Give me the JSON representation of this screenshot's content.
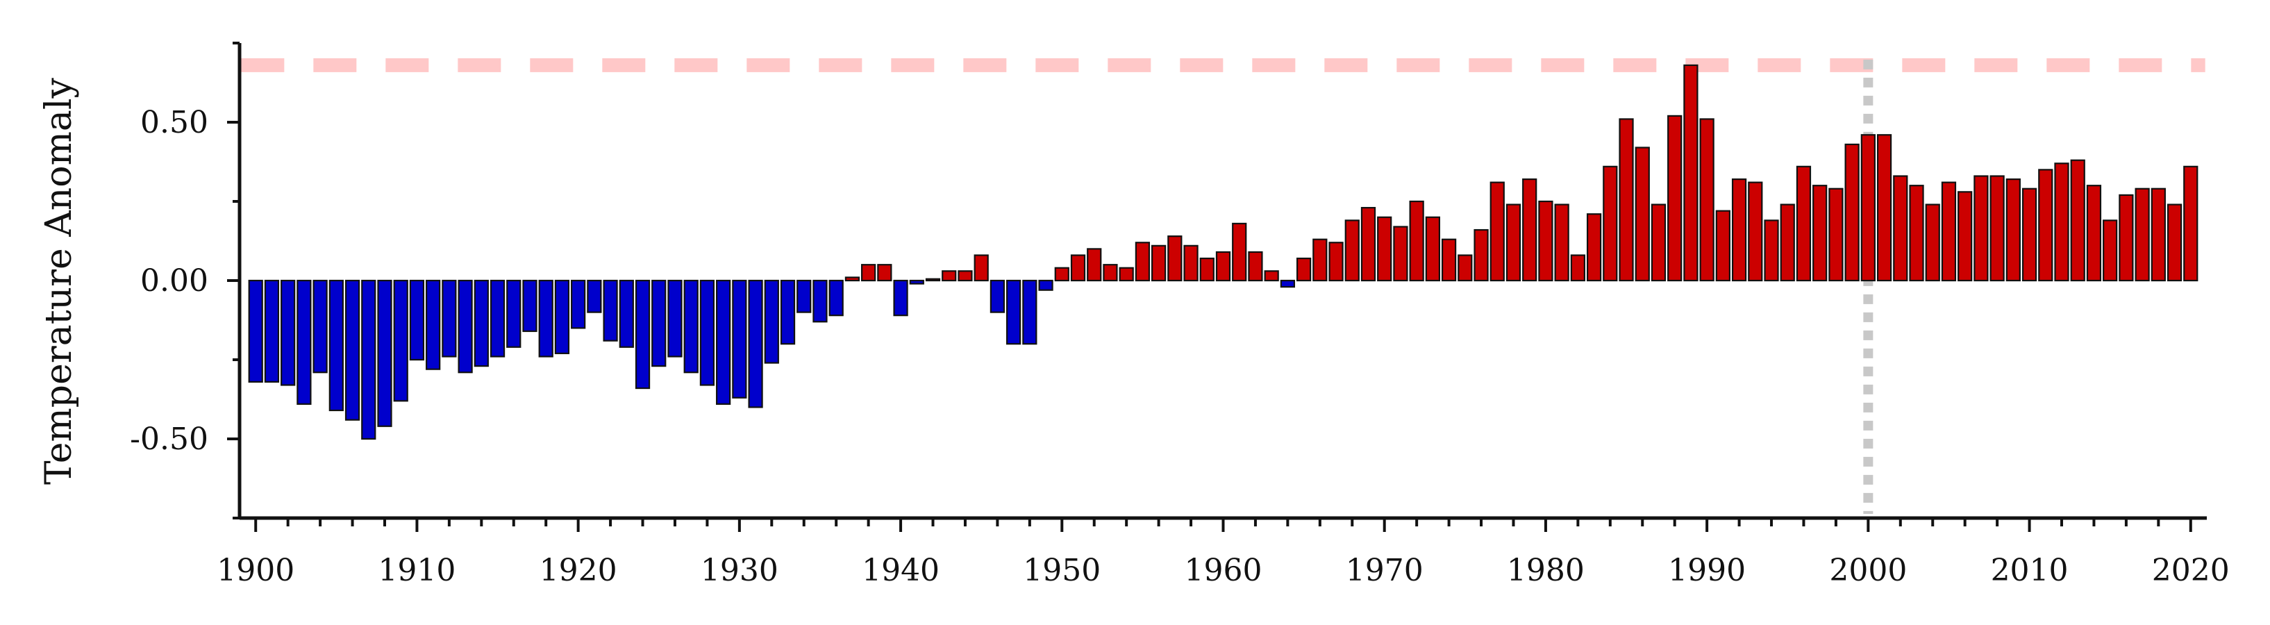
{
  "chart_data": {
    "type": "bar",
    "title": "",
    "xlabel": "",
    "ylabel": "Temperature Anomaly",
    "xlim": [
      1899,
      2021
    ],
    "ylim": [
      -0.75,
      0.75
    ],
    "x_ticks": [
      1900,
      1910,
      1920,
      1930,
      1940,
      1950,
      1960,
      1970,
      1980,
      1990,
      2000,
      2010,
      2020
    ],
    "y_ticks": [
      "0.50",
      "0.00",
      "-0.50"
    ],
    "y_tick_values": [
      0.5,
      0.0,
      -0.5
    ],
    "grid": false,
    "positive_color": "#cc0000",
    "negative_color": "#0000cc",
    "edge_color": "#111111",
    "reference_line": {
      "value": 0.68,
      "style": "dashed",
      "color": "#ffc8c8"
    },
    "vertical_marker": {
      "x": 2000,
      "style": "dotted",
      "color": "#c8c8c8"
    },
    "series": [
      {
        "x": [
          1900,
          1901,
          1902,
          1903,
          1904,
          1905,
          1906,
          1907,
          1908,
          1909,
          1910,
          1911,
          1912,
          1913,
          1914,
          1915,
          1916,
          1917,
          1918,
          1919,
          1920,
          1921,
          1922,
          1923,
          1924,
          1925,
          1926,
          1927,
          1928,
          1929,
          1930,
          1931,
          1932,
          1933,
          1934,
          1935,
          1936,
          1937,
          1938,
          1939,
          1940,
          1941,
          1942,
          1943,
          1944,
          1945,
          1946,
          1947,
          1948,
          1949,
          1950,
          1951,
          1952,
          1953,
          1954,
          1955,
          1956,
          1957,
          1958,
          1959,
          1960,
          1961,
          1962,
          1963,
          1964,
          1965,
          1966,
          1967,
          1968,
          1969,
          1970,
          1971,
          1972,
          1973,
          1974,
          1975,
          1976,
          1977,
          1978,
          1979,
          1980,
          1981,
          1982,
          1983,
          1984,
          1985,
          1986,
          1987,
          1988,
          1989,
          1990,
          1991,
          1992,
          1993,
          1994,
          1995,
          1996,
          1997,
          1998,
          1999,
          2000,
          2001,
          2002,
          2003,
          2004,
          2005,
          2006,
          2007,
          2008,
          2009,
          2010,
          2011,
          2012,
          2013,
          2014,
          2015,
          2016,
          2017,
          2018,
          2019,
          2020
        ],
        "values": [
          -0.32,
          -0.32,
          -0.33,
          -0.39,
          -0.29,
          -0.41,
          -0.44,
          -0.5,
          -0.46,
          -0.38,
          -0.25,
          -0.28,
          -0.24,
          -0.29,
          -0.27,
          -0.24,
          -0.21,
          -0.16,
          -0.24,
          -0.23,
          -0.15,
          -0.1,
          -0.19,
          -0.21,
          -0.34,
          -0.27,
          -0.24,
          -0.29,
          -0.33,
          -0.39,
          -0.37,
          -0.4,
          -0.26,
          -0.2,
          -0.1,
          -0.13,
          -0.11,
          0.01,
          0.05,
          0.05,
          -0.11,
          -0.01,
          0.005,
          0.03,
          0.03,
          0.08,
          -0.1,
          -0.2,
          -0.2,
          -0.03,
          0.04,
          0.08,
          0.1,
          0.05,
          0.04,
          0.12,
          0.11,
          0.14,
          0.11,
          0.07,
          0.09,
          0.18,
          0.09,
          0.03,
          -0.02,
          0.07,
          0.13,
          0.12,
          0.19,
          0.23,
          0.2,
          0.17,
          0.25,
          0.2,
          0.13,
          0.08,
          0.16,
          0.31,
          0.24,
          0.32,
          0.25,
          0.24,
          0.08,
          0.21,
          0.36,
          0.51,
          0.42,
          0.24,
          0.52,
          0.68,
          0.51,
          0.22,
          0.32,
          0.31,
          0.19,
          0.24,
          0.36,
          0.3,
          0.29,
          0.43,
          0.46,
          0.46,
          0.33,
          0.3,
          0.24,
          0.31,
          0.28,
          0.33,
          0.33,
          0.32,
          0.29,
          0.35,
          0.37,
          0.38,
          0.3,
          0.19,
          0.27,
          0.29,
          0.29,
          0.24,
          0.36
        ]
      }
    ]
  }
}
